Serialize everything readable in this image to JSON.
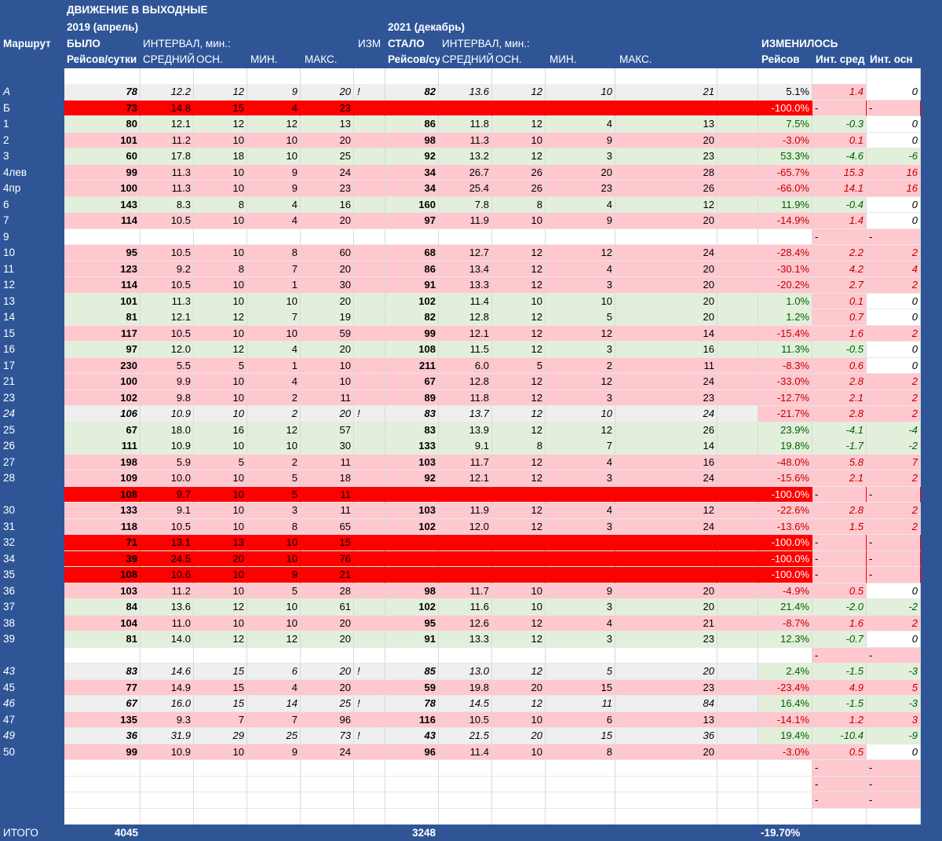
{
  "header": {
    "title": "ДВИЖЕНИЕ В ВЫХОДНЫЕ",
    "period_before": "2019 (апрель)",
    "period_after": "2021 (декабрь)",
    "route_label": "Маршрут",
    "was": "БЫЛО",
    "became": "СТАЛО",
    "interval_before": "ИНТЕРВАЛ, мин.:",
    "interval_after": "ИНТЕРВАЛ, мин.:",
    "izm": "ИЗМ",
    "changed": "ИЗМЕНИЛОСЬ",
    "trips_before": "Рейсов/сутки",
    "trips_after": "Рейсов/су",
    "avg_before": "СРЕДНИЙ",
    "osn_before": "ОСН.",
    "min_before": "МИН.",
    "max_before": "МАКС.",
    "avg_after": "СРЕДНИЙ",
    "osn_after": "ОСН.",
    "min_after": "МИН.",
    "max_after": "МАКС.",
    "ch_trips": "Рейсов",
    "ch_avg": "Инт. сред",
    "ch_osn": "Инт. осн"
  },
  "totals": {
    "label": "ИТОГО",
    "before": "4045",
    "after": "3248",
    "change": "-19.70%"
  },
  "colors": {
    "background": "#2f5597",
    "red": "#ff0000",
    "pink": "#ffc7ce",
    "green": "#e2efda",
    "grey": "#efefef",
    "green_text": "#006100",
    "red_text": "#c00000"
  },
  "rows": [
    {
      "route": "А",
      "style": "grey",
      "italic": true,
      "t1": "78",
      "avg1": "12.2",
      "osn1": "12",
      "min1": "9",
      "max1": "20",
      "excl": "!",
      "t2": "82",
      "avg2": "13.6",
      "osn2": "12",
      "min2": "10",
      "max2": "21",
      "pct": "5.1%",
      "dav": "1.4",
      "dosn": "0"
    },
    {
      "route": "Б",
      "style": "red",
      "t1": "73",
      "avg1": "14.8",
      "osn1": "15",
      "min1": "4",
      "max1": "23",
      "pct": "-100.0%",
      "dav": "-",
      "dosn": "-"
    },
    {
      "route": "1",
      "style": "green",
      "t1": "80",
      "avg1": "12.1",
      "osn1": "12",
      "min1": "12",
      "max1": "13",
      "t2": "86",
      "avg2": "11.8",
      "osn2": "12",
      "min2": "4",
      "max2": "13",
      "pct": "7.5%",
      "dav": "-0.3",
      "dosn": "0"
    },
    {
      "route": "2",
      "style": "pink",
      "t1": "101",
      "avg1": "11.2",
      "osn1": "10",
      "min1": "10",
      "max1": "20",
      "t2": "98",
      "avg2": "11.3",
      "osn2": "10",
      "min2": "9",
      "max2": "20",
      "pct": "-3.0%",
      "dav": "0.1",
      "dosn": "0"
    },
    {
      "route": "3",
      "style": "green",
      "t1": "60",
      "avg1": "17.8",
      "osn1": "18",
      "min1": "10",
      "max1": "25",
      "t2": "92",
      "avg2": "13.2",
      "osn2": "12",
      "min2": "3",
      "max2": "23",
      "pct": "53.3%",
      "dav": "-4.6",
      "dosn": "-6"
    },
    {
      "route": "4лев",
      "style": "pink",
      "t1": "99",
      "avg1": "11.3",
      "osn1": "10",
      "min1": "9",
      "max1": "24",
      "t2": "34",
      "avg2": "26.7",
      "osn2": "26",
      "min2": "20",
      "max2": "28",
      "pct": "-65.7%",
      "dav": "15.3",
      "dosn": "16"
    },
    {
      "route": "4пр",
      "style": "pink",
      "t1": "100",
      "avg1": "11.3",
      "osn1": "10",
      "min1": "9",
      "max1": "23",
      "t2": "34",
      "avg2": "25.4",
      "osn2": "26",
      "min2": "23",
      "max2": "26",
      "pct": "-66.0%",
      "dav": "14.1",
      "dosn": "16"
    },
    {
      "route": "6",
      "style": "green",
      "t1": "143",
      "avg1": "8.3",
      "osn1": "8",
      "min1": "4",
      "max1": "16",
      "t2": "160",
      "avg2": "7.8",
      "osn2": "8",
      "min2": "4",
      "max2": "12",
      "pct": "11.9%",
      "dav": "-0.4",
      "dosn": "0"
    },
    {
      "route": "7",
      "style": "pink",
      "t1": "114",
      "avg1": "10.5",
      "osn1": "10",
      "min1": "4",
      "max1": "20",
      "t2": "97",
      "avg2": "11.9",
      "osn2": "10",
      "min2": "9",
      "max2": "20",
      "pct": "-14.9%",
      "dav": "1.4",
      "dosn": "0"
    },
    {
      "route": "9",
      "style": "empty",
      "dav": "-",
      "dosn": "-"
    },
    {
      "route": "10",
      "style": "pink",
      "t1": "95",
      "avg1": "10.5",
      "osn1": "10",
      "min1": "8",
      "max1": "60",
      "t2": "68",
      "avg2": "12.7",
      "osn2": "12",
      "min2": "12",
      "max2": "24",
      "pct": "-28.4%",
      "dav": "2.2",
      "dosn": "2"
    },
    {
      "route": "11",
      "style": "pink",
      "t1": "123",
      "avg1": "9.2",
      "osn1": "8",
      "min1": "7",
      "max1": "20",
      "t2": "86",
      "avg2": "13.4",
      "osn2": "12",
      "min2": "4",
      "max2": "20",
      "pct": "-30.1%",
      "dav": "4.2",
      "dosn": "4"
    },
    {
      "route": "12",
      "style": "pink",
      "t1": "114",
      "avg1": "10.5",
      "osn1": "10",
      "min1": "1",
      "max1": "30",
      "t2": "91",
      "avg2": "13.3",
      "osn2": "12",
      "min2": "3",
      "max2": "20",
      "pct": "-20.2%",
      "dav": "2.7",
      "dosn": "2"
    },
    {
      "route": "13",
      "style": "green",
      "t1": "101",
      "avg1": "11.3",
      "osn1": "10",
      "min1": "10",
      "max1": "20",
      "t2": "102",
      "avg2": "11.4",
      "osn2": "10",
      "min2": "10",
      "max2": "20",
      "pct": "1.0%",
      "dav": "0.1",
      "dosn": "0"
    },
    {
      "route": "14",
      "style": "green",
      "t1": "81",
      "avg1": "12.1",
      "osn1": "12",
      "min1": "7",
      "max1": "19",
      "t2": "82",
      "avg2": "12.8",
      "osn2": "12",
      "min2": "5",
      "max2": "20",
      "pct": "1.2%",
      "dav": "0.7",
      "dosn": "0"
    },
    {
      "route": "15",
      "style": "pink",
      "t1": "117",
      "avg1": "10.5",
      "osn1": "10",
      "min1": "10",
      "max1": "59",
      "t2": "99",
      "avg2": "12.1",
      "osn2": "12",
      "min2": "12",
      "max2": "14",
      "pct": "-15.4%",
      "dav": "1.6",
      "dosn": "2"
    },
    {
      "route": "16",
      "style": "green",
      "t1": "97",
      "avg1": "12.0",
      "osn1": "12",
      "min1": "4",
      "max1": "20",
      "t2": "108",
      "avg2": "11.5",
      "osn2": "12",
      "min2": "3",
      "max2": "16",
      "pct": "11.3%",
      "dav": "-0.5",
      "dosn": "0"
    },
    {
      "route": "17",
      "style": "pink",
      "t1": "230",
      "avg1": "5.5",
      "osn1": "5",
      "min1": "1",
      "max1": "10",
      "t2": "211",
      "avg2": "6.0",
      "osn2": "5",
      "min2": "2",
      "max2": "11",
      "pct": "-8.3%",
      "dav": "0.6",
      "dosn": "0"
    },
    {
      "route": "21",
      "style": "pink",
      "t1": "100",
      "avg1": "9.9",
      "osn1": "10",
      "min1": "4",
      "max1": "10",
      "t2": "67",
      "avg2": "12.8",
      "osn2": "12",
      "min2": "12",
      "max2": "24",
      "pct": "-33.0%",
      "dav": "2.8",
      "dosn": "2"
    },
    {
      "route": "23",
      "style": "pink",
      "t1": "102",
      "avg1": "9.8",
      "osn1": "10",
      "min1": "2",
      "max1": "11",
      "t2": "89",
      "avg2": "11.8",
      "osn2": "12",
      "min2": "3",
      "max2": "23",
      "pct": "-12.7%",
      "dav": "2.1",
      "dosn": "2"
    },
    {
      "route": "24",
      "style": "grey",
      "italic": true,
      "t1": "106",
      "avg1": "10.9",
      "osn1": "10",
      "min1": "2",
      "max1": "20",
      "excl": "!",
      "t2": "83",
      "avg2": "13.7",
      "osn2": "12",
      "min2": "10",
      "max2": "24",
      "pct": "-21.7%",
      "pctstyle": "pink",
      "dav": "2.8",
      "dosn": "2"
    },
    {
      "route": "25",
      "style": "green",
      "t1": "67",
      "avg1": "18.0",
      "osn1": "16",
      "min1": "12",
      "max1": "57",
      "t2": "83",
      "avg2": "13.9",
      "osn2": "12",
      "min2": "12",
      "max2": "26",
      "pct": "23.9%",
      "dav": "-4.1",
      "dosn": "-4"
    },
    {
      "route": "26",
      "style": "green",
      "t1": "111",
      "avg1": "10.9",
      "osn1": "10",
      "min1": "10",
      "max1": "30",
      "t2": "133",
      "avg2": "9.1",
      "osn2": "8",
      "min2": "7",
      "max2": "14",
      "pct": "19.8%",
      "dav": "-1.7",
      "dosn": "-2"
    },
    {
      "route": "27",
      "style": "pink",
      "t1": "198",
      "avg1": "5.9",
      "osn1": "5",
      "min1": "2",
      "max1": "11",
      "t2": "103",
      "avg2": "11.7",
      "osn2": "12",
      "min2": "4",
      "max2": "16",
      "pct": "-48.0%",
      "dav": "5.8",
      "dosn": "7"
    },
    {
      "route": "28",
      "style": "pink",
      "t1": "109",
      "avg1": "10.0",
      "osn1": "10",
      "min1": "5",
      "max1": "18",
      "t2": "92",
      "avg2": "12.1",
      "osn2": "12",
      "min2": "3",
      "max2": "24",
      "pct": "-15.6%",
      "dav": "2.1",
      "dosn": "2"
    },
    {
      "route": "",
      "style": "red",
      "t1": "108",
      "avg1": "9.7",
      "osn1": "10",
      "min1": "5",
      "max1": "11",
      "pct": "-100.0%",
      "dav": "-",
      "dosn": "-"
    },
    {
      "route": "30",
      "style": "pink",
      "t1": "133",
      "avg1": "9.1",
      "osn1": "10",
      "min1": "3",
      "max1": "11",
      "t2": "103",
      "avg2": "11.9",
      "osn2": "12",
      "min2": "4",
      "max2": "12",
      "pct": "-22.6%",
      "dav": "2.8",
      "dosn": "2"
    },
    {
      "route": "31",
      "style": "pink",
      "t1": "118",
      "avg1": "10.5",
      "osn1": "10",
      "min1": "8",
      "max1": "65",
      "t2": "102",
      "avg2": "12.0",
      "osn2": "12",
      "min2": "3",
      "max2": "24",
      "pct": "-13.6%",
      "dav": "1.5",
      "dosn": "2"
    },
    {
      "route": "32",
      "style": "red",
      "t1": "71",
      "avg1": "13.1",
      "osn1": "13",
      "min1": "10",
      "max1": "15",
      "pct": "-100.0%",
      "dav": "-",
      "dosn": "-"
    },
    {
      "route": "34",
      "style": "red",
      "t1": "39",
      "avg1": "24.5",
      "osn1": "20",
      "min1": "10",
      "max1": "76",
      "pct": "-100.0%",
      "dav": "-",
      "dosn": "-"
    },
    {
      "route": "35",
      "style": "red",
      "t1": "108",
      "avg1": "10.6",
      "osn1": "10",
      "min1": "9",
      "max1": "21",
      "pct": "-100.0%",
      "dav": "-",
      "dosn": "-"
    },
    {
      "route": "36",
      "style": "pink",
      "t1": "103",
      "avg1": "11.2",
      "osn1": "10",
      "min1": "5",
      "max1": "28",
      "t2": "98",
      "avg2": "11.7",
      "osn2": "10",
      "min2": "9",
      "max2": "20",
      "pct": "-4.9%",
      "dav": "0.5",
      "dosn": "0"
    },
    {
      "route": "37",
      "style": "green",
      "t1": "84",
      "avg1": "13.6",
      "osn1": "12",
      "min1": "10",
      "max1": "61",
      "t2": "102",
      "avg2": "11.6",
      "osn2": "10",
      "min2": "3",
      "max2": "20",
      "pct": "21.4%",
      "dav": "-2.0",
      "dosn": "-2"
    },
    {
      "route": "38",
      "style": "pink",
      "t1": "104",
      "avg1": "11.0",
      "osn1": "10",
      "min1": "10",
      "max1": "20",
      "t2": "95",
      "avg2": "12.6",
      "osn2": "12",
      "min2": "4",
      "max2": "21",
      "pct": "-8.7%",
      "dav": "1.6",
      "dosn": "2"
    },
    {
      "route": "39",
      "style": "green",
      "t1": "81",
      "avg1": "14.0",
      "osn1": "12",
      "min1": "12",
      "max1": "20",
      "t2": "91",
      "avg2": "13.3",
      "osn2": "12",
      "min2": "3",
      "max2": "23",
      "pct": "12.3%",
      "dav": "-0.7",
      "dosn": "0"
    },
    {
      "route": "",
      "style": "empty",
      "dav": "-",
      "dosn": "-"
    },
    {
      "route": "43",
      "style": "grey",
      "italic": true,
      "t1": "83",
      "avg1": "14.6",
      "osn1": "15",
      "min1": "6",
      "max1": "20",
      "excl": "!",
      "t2": "85",
      "avg2": "13.0",
      "osn2": "12",
      "min2": "5",
      "max2": "20",
      "pct": "2.4%",
      "pctstyle": "green",
      "dav": "-1.5",
      "dosn": "-3"
    },
    {
      "route": "45",
      "style": "pink",
      "t1": "77",
      "avg1": "14.9",
      "osn1": "15",
      "min1": "4",
      "max1": "20",
      "t2": "59",
      "avg2": "19.8",
      "osn2": "20",
      "min2": "15",
      "max2": "23",
      "pct": "-23.4%",
      "dav": "4.9",
      "dosn": "5"
    },
    {
      "route": "46",
      "style": "grey",
      "italic": true,
      "t1": "67",
      "avg1": "16.0",
      "osn1": "15",
      "min1": "14",
      "max1": "25",
      "excl": "!",
      "t2": "78",
      "avg2": "14.5",
      "osn2": "12",
      "min2": "11",
      "max2": "84",
      "pct": "16.4%",
      "pctstyle": "green",
      "dav": "-1.5",
      "dosn": "-3"
    },
    {
      "route": "47",
      "style": "pink",
      "t1": "135",
      "avg1": "9.3",
      "osn1": "7",
      "min1": "7",
      "max1": "96",
      "t2": "116",
      "avg2": "10.5",
      "osn2": "10",
      "min2": "6",
      "max2": "13",
      "pct": "-14.1%",
      "dav": "1.2",
      "dosn": "3"
    },
    {
      "route": "49",
      "style": "grey",
      "italic": true,
      "t1": "36",
      "avg1": "31.9",
      "osn1": "29",
      "min1": "25",
      "max1": "73",
      "excl": "!",
      "t2": "43",
      "avg2": "21.5",
      "osn2": "20",
      "min2": "15",
      "max2": "36",
      "pct": "19.4%",
      "pctstyle": "green",
      "dav": "-10.4",
      "dosn": "-9"
    },
    {
      "route": "50",
      "style": "pink",
      "t1": "99",
      "avg1": "10.9",
      "osn1": "10",
      "min1": "9",
      "max1": "24",
      "t2": "96",
      "avg2": "11.4",
      "osn2": "10",
      "min2": "8",
      "max2": "20",
      "pct": "-3.0%",
      "dav": "0.5",
      "dosn": "0"
    },
    {
      "route": "",
      "style": "empty",
      "dav": "-",
      "dosn": "-"
    },
    {
      "route": "",
      "style": "empty",
      "dav": "-",
      "dosn": "-"
    },
    {
      "route": "",
      "style": "empty",
      "dav": "-",
      "dosn": "-"
    }
  ]
}
